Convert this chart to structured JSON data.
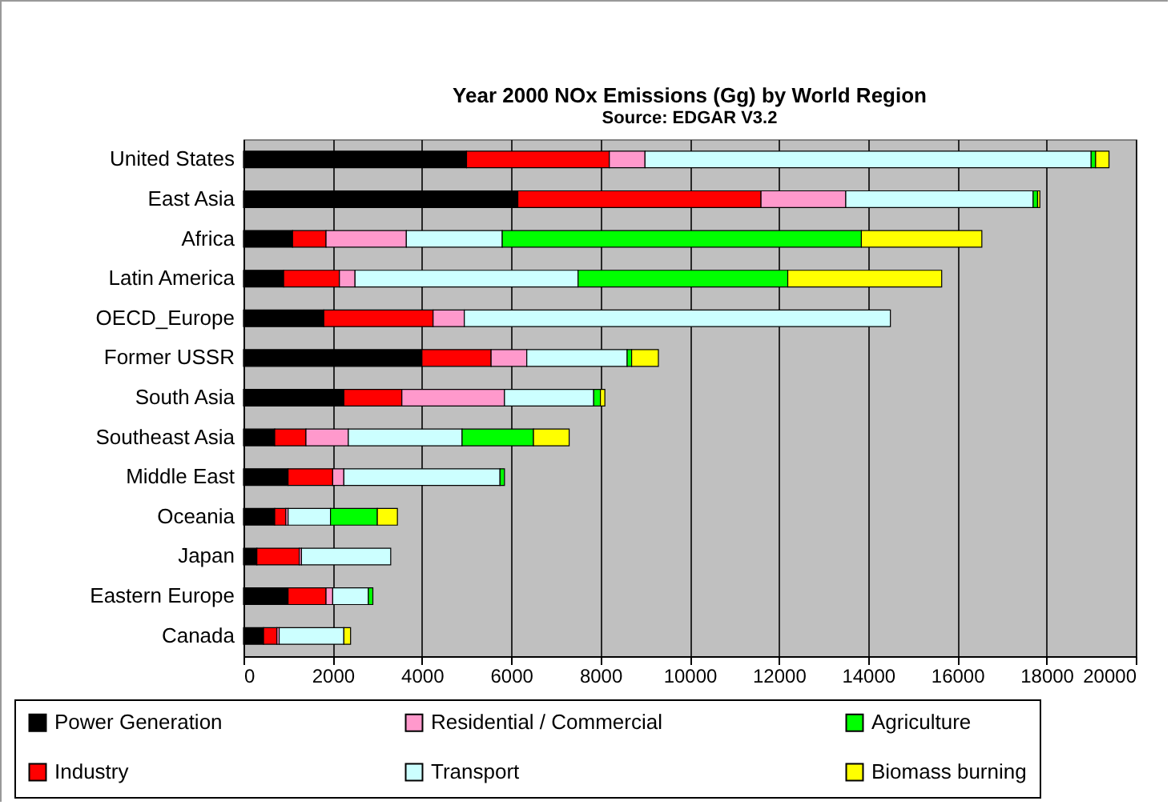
{
  "chart_data": {
    "type": "bar",
    "orientation": "horizontal",
    "stacked": true,
    "title": "Year 2000 NOx Emissions (Gg) by World Region",
    "subtitle": "Source: EDGAR V3.2",
    "categories": [
      "United States",
      "East Asia",
      "Africa",
      "Latin America",
      "OECD_Europe",
      "Former USSR",
      "South Asia",
      "Southeast Asia",
      "Middle East",
      "Oceania",
      "Japan",
      "Eastern Europe",
      "Canada"
    ],
    "series": [
      {
        "name": "Power Generation",
        "color": "#000000",
        "values": [
          5000,
          6150,
          1100,
          900,
          1800,
          4000,
          2250,
          700,
          1000,
          700,
          300,
          1000,
          450
        ]
      },
      {
        "name": "Industry",
        "color": "#ff0000",
        "values": [
          3200,
          5450,
          750,
          1250,
          2450,
          1550,
          1300,
          700,
          1000,
          250,
          950,
          850,
          300
        ]
      },
      {
        "name": "Residential / Commercial",
        "color": "#ff99cc",
        "values": [
          800,
          1900,
          1800,
          350,
          700,
          800,
          2300,
          950,
          250,
          50,
          50,
          150,
          50
        ]
      },
      {
        "name": "Transport",
        "color": "#ccffff",
        "values": [
          10000,
          4200,
          2150,
          5000,
          9550,
          2250,
          2000,
          2550,
          3500,
          950,
          2000,
          800,
          1450
        ]
      },
      {
        "name": "Agriculture",
        "color": "#00ff00",
        "values": [
          100,
          100,
          8050,
          4700,
          null,
          100,
          150,
          1600,
          100,
          1050,
          null,
          100,
          null
        ]
      },
      {
        "name": "Biomass burning",
        "color": "#ffff00",
        "values": [
          300,
          50,
          2700,
          3450,
          null,
          600,
          100,
          800,
          null,
          450,
          null,
          null,
          150
        ]
      }
    ],
    "xlim": [
      0,
      20000
    ],
    "xticks": [
      0,
      2000,
      4000,
      6000,
      8000,
      10000,
      12000,
      14000,
      16000,
      18000,
      20000
    ],
    "grid": "x",
    "legend": "bottom"
  }
}
